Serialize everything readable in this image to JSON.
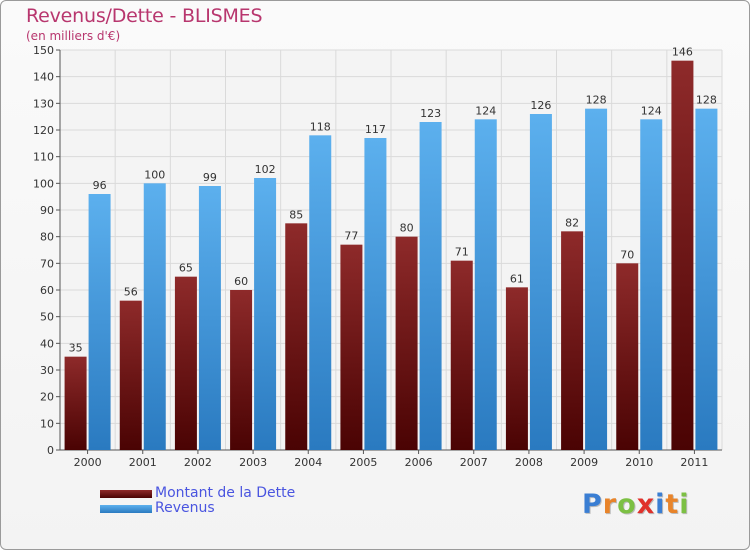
{
  "title": "Revenus/Dette - BLISMES",
  "subtitle": "(en milliers d'€)",
  "logo": {
    "text": "Proxiti",
    "colors": [
      "#3a7ed3",
      "#e8842a",
      "#7cc043",
      "#e0312b",
      "#3a7ed3",
      "#e8842a",
      "#7cc043"
    ]
  },
  "chart_data": {
    "type": "bar",
    "categories": [
      "2000",
      "2001",
      "2002",
      "2003",
      "2004",
      "2005",
      "2006",
      "2007",
      "2008",
      "2009",
      "2010",
      "2011"
    ],
    "series": [
      {
        "name": "Montant de la Dette",
        "color": "#7a1a1a",
        "values": [
          35,
          56,
          65,
          60,
          85,
          77,
          80,
          71,
          61,
          82,
          70,
          146
        ]
      },
      {
        "name": "Revenus",
        "color": "#4a9fe3",
        "values": [
          96,
          100,
          99,
          102,
          118,
          117,
          123,
          124,
          126,
          128,
          124,
          128
        ]
      }
    ],
    "yticks": [
      0,
      10,
      20,
      30,
      40,
      50,
      60,
      70,
      80,
      90,
      100,
      110,
      120,
      130,
      140,
      150
    ],
    "ylim": [
      0,
      150
    ],
    "grid": true,
    "legend_position": "bottom-left"
  }
}
